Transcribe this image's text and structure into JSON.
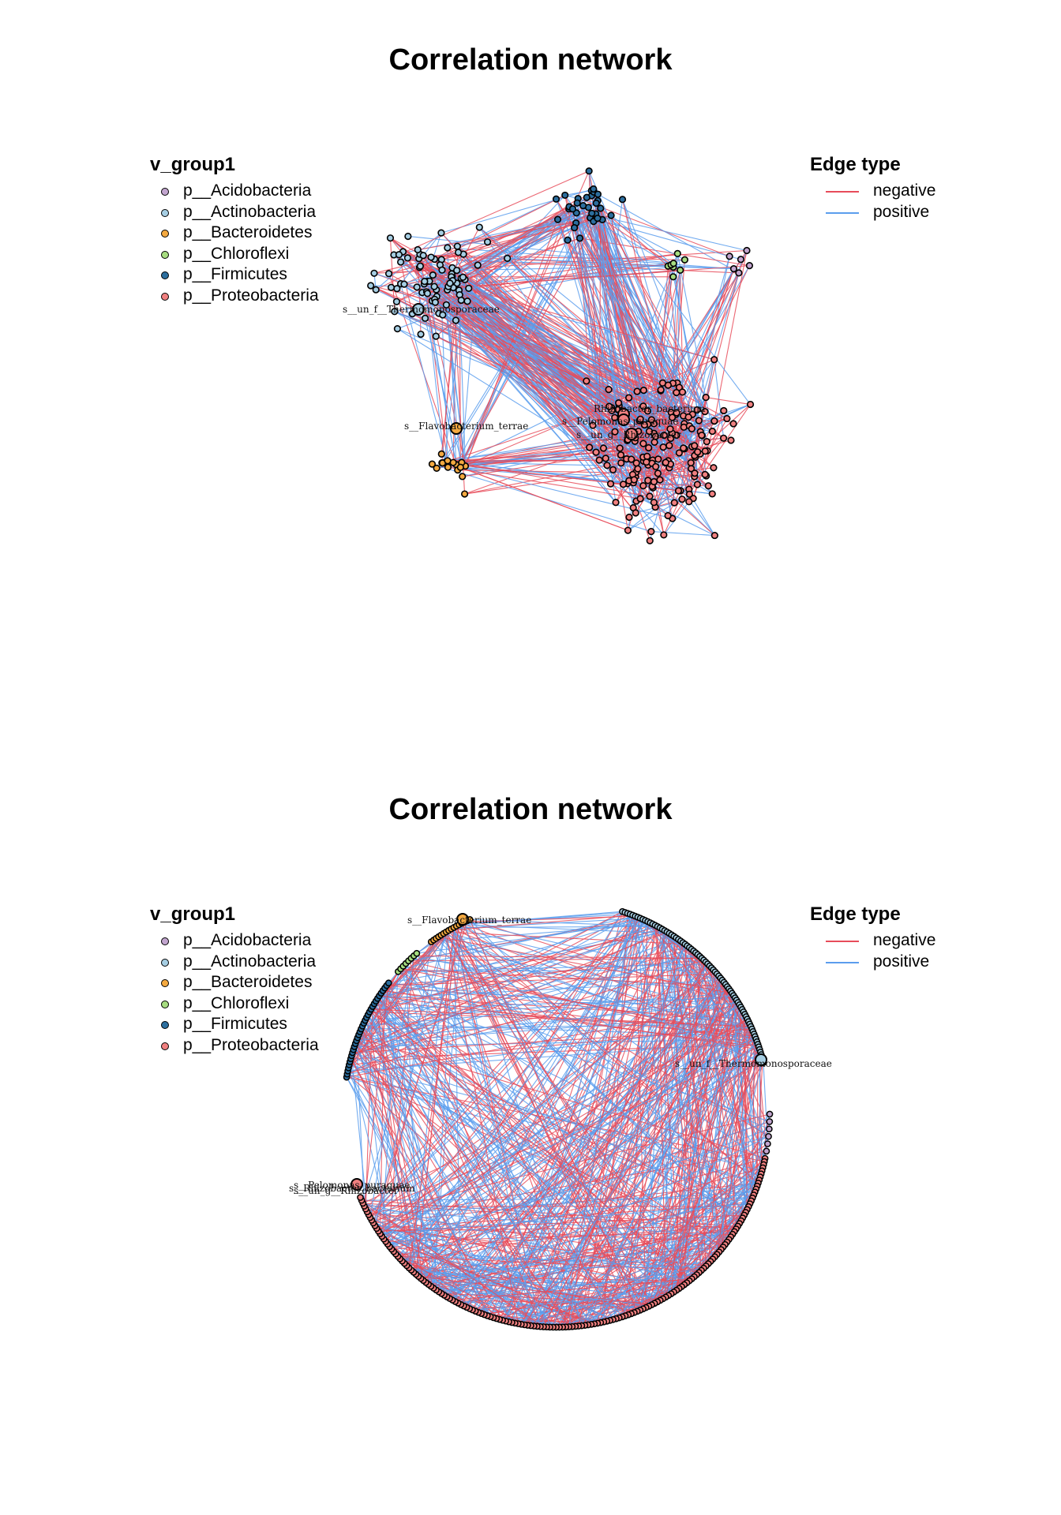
{
  "colors": {
    "p__Acidobacteria": "#c2a5cf",
    "p__Actinobacteria": "#a6cee3",
    "p__Bacteroidetes": "#f4a940",
    "p__Chloroflexi": "#a6dc80",
    "p__Firmicutes": "#2c6e9e",
    "p__Proteobacteria": "#f08080",
    "negative": "#e74c5a",
    "positive": "#5b9ded"
  },
  "panels": [
    {
      "title": "Correlation network",
      "layout": "force",
      "legend_group": {
        "title": "v_group1",
        "items": [
          "p__Acidobacteria",
          "p__Actinobacteria",
          "p__Bacteroidetes",
          "p__Chloroflexi",
          "p__Firmicutes",
          "p__Proteobacteria"
        ]
      },
      "legend_edge": {
        "title": "Edge type",
        "items": [
          "negative",
          "positive"
        ]
      },
      "node_labels": [
        "s__un_f__Thermomonosporaceae",
        "s__Flavobacterium_terrae",
        "Rhizobacter_bacterium",
        "s__Pelomonas_puraquae",
        "s__un_g__Rhizobacter"
      ]
    },
    {
      "title": "Correlation network",
      "layout": "circle",
      "legend_group": {
        "title": "v_group1",
        "items": [
          "p__Acidobacteria",
          "p__Actinobacteria",
          "p__Bacteroidetes",
          "p__Chloroflexi",
          "p__Firmicutes",
          "p__Proteobacteria"
        ]
      },
      "legend_edge": {
        "title": "Edge type",
        "items": [
          "negative",
          "positive"
        ]
      },
      "node_labels": [
        "s__Flavobacterium_terrae",
        "s__un_f__Thermomonosporaceae",
        "s__Pelomonas_puraquae",
        "s__Rhizobacter_bacterium",
        "s__un_g__Rhizobacter"
      ]
    }
  ]
}
